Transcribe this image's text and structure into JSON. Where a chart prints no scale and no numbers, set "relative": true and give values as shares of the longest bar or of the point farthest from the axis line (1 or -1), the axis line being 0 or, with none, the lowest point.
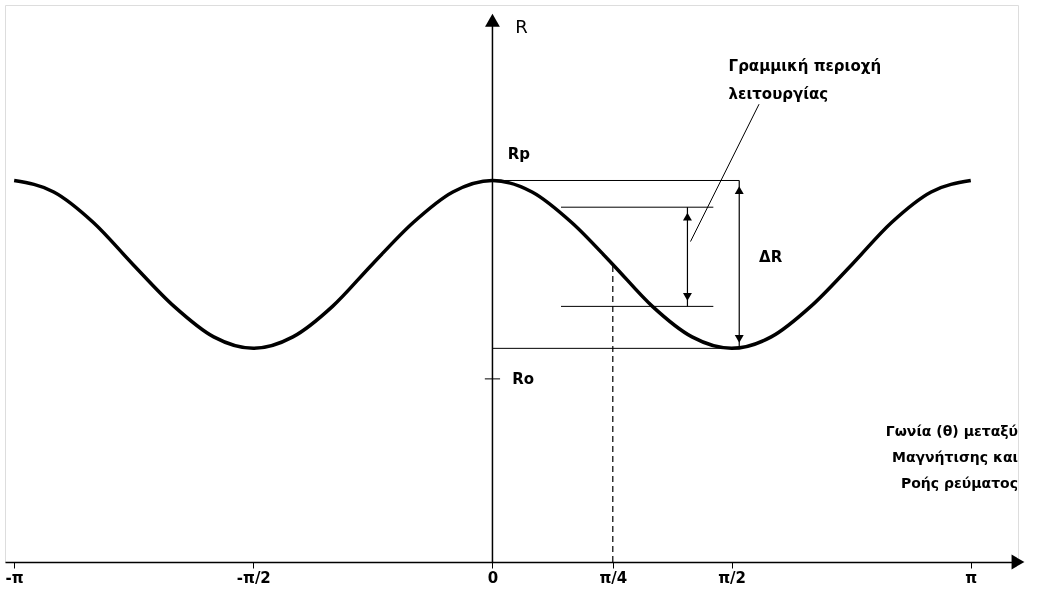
{
  "chart_data": {
    "type": "line",
    "relative": true,
    "xlabel": "Γωνία (θ) μεταξύ\nΜαγνήτισης και\nΡοής ρεύματος",
    "x": [
      -3.14,
      -2.88,
      -2.62,
      -2.36,
      -2.09,
      -1.83,
      -1.57,
      -1.31,
      -1.05,
      -0.79,
      -0.52,
      -0.26,
      0,
      0.26,
      0.52,
      0.79,
      1.05,
      1.31,
      1.57,
      1.83,
      2.09,
      2.36,
      2.62,
      2.88,
      3.14
    ],
    "series": [
      {
        "color": "#000000",
        "values": [
          1,
          0.97,
          0.89,
          0.78,
          0.67,
          0.59,
          0.56,
          0.59,
          0.67,
          0.78,
          0.89,
          0.97,
          1,
          0.97,
          0.89,
          0.78,
          0.67,
          0.59,
          0.56,
          0.59,
          0.67,
          0.78,
          0.89,
          0.97,
          1
        ]
      }
    ],
    "xlim": [
      -3.2,
      3.45
    ],
    "xticks": [
      {
        "value": -3.14,
        "label": "-π"
      },
      {
        "value": -1.57,
        "label": "-π/2"
      },
      0,
      {
        "value": 0.79,
        "label": "π/4"
      },
      {
        "value": 1.57,
        "label": "π/2"
      },
      {
        "value": 3.14,
        "label": "π"
      }
    ],
    "annotations": [
      "R",
      "Rp",
      "Ro",
      "ΔR",
      "Γραμμική περιοχή\nλειτουργίας"
    ],
    "ref_lines": [
      {
        "axis": "x",
        "value": 0.79,
        "line_style": "dashed"
      }
    ],
    "grid": false,
    "marker": "none",
    "line_style": "solid"
  }
}
